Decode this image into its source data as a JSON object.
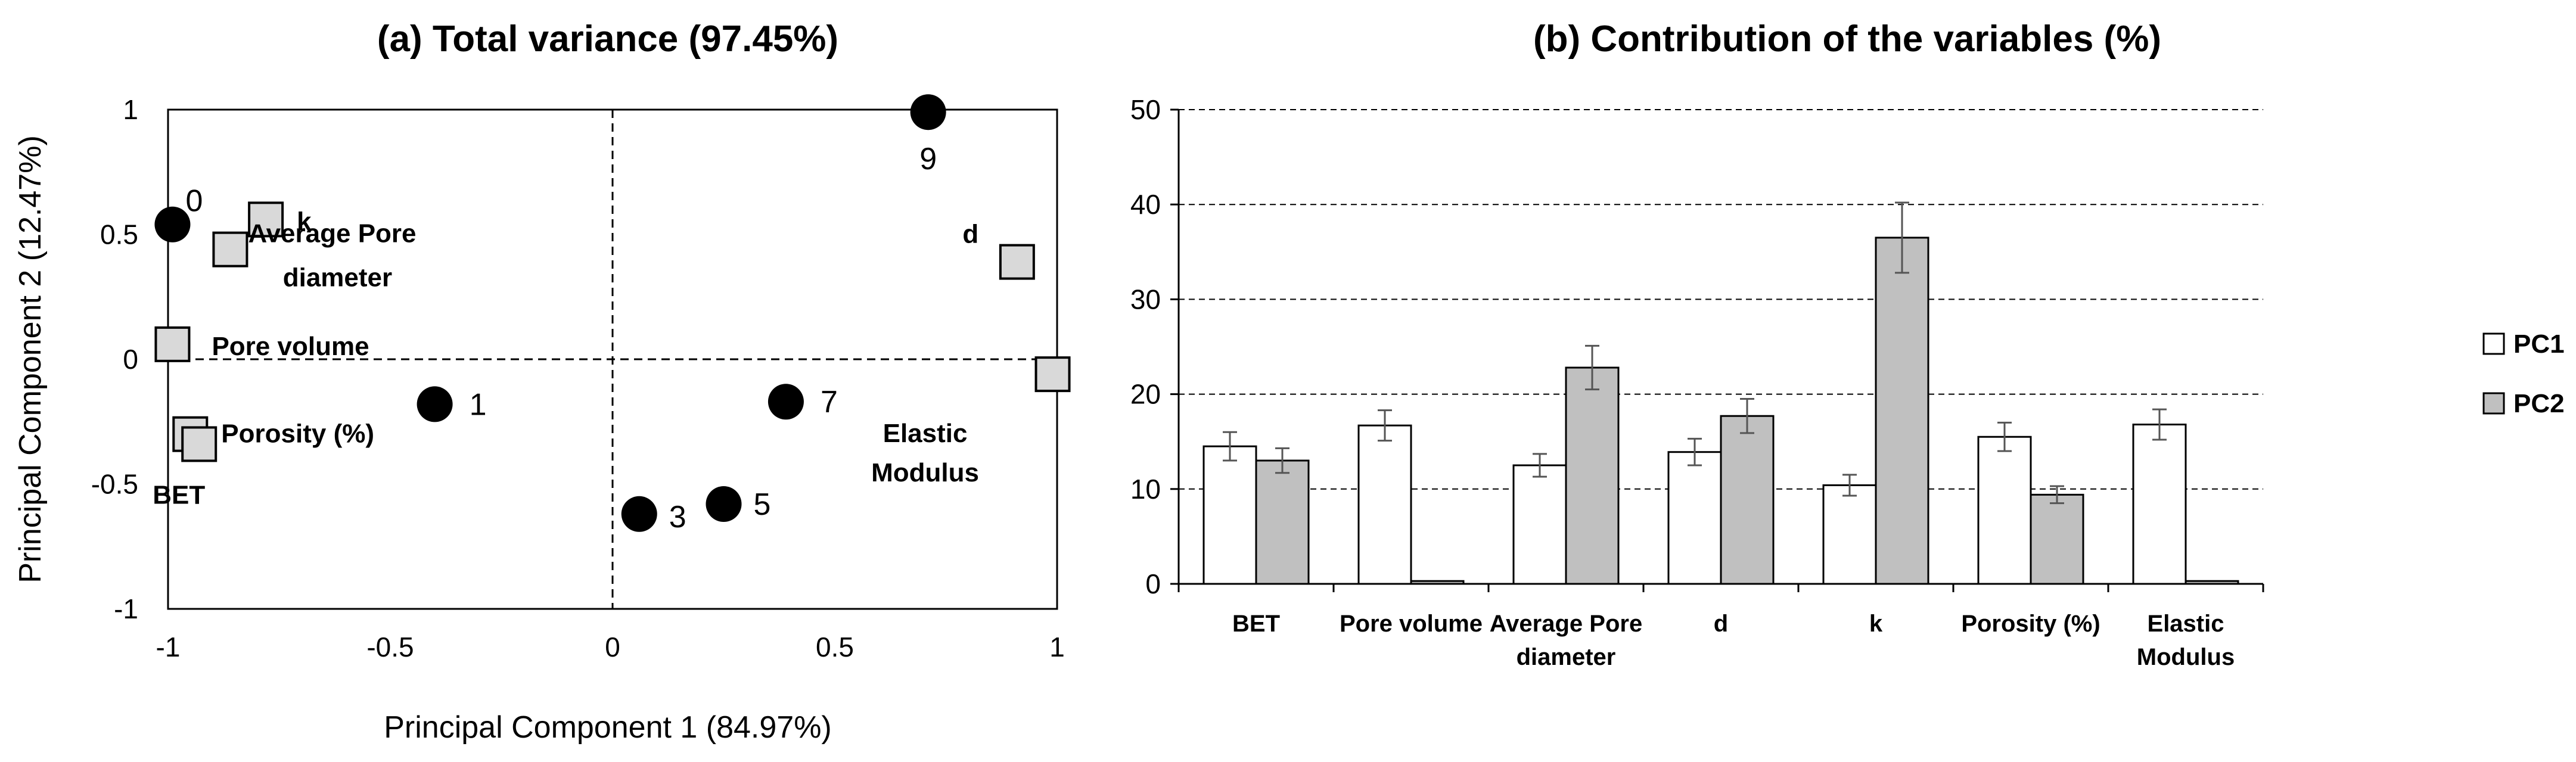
{
  "chart_data": [
    {
      "type": "scatter",
      "title": "(a) Total variance (97.45%)",
      "xlabel": "Principal Component 1 (84.97%)",
      "ylabel": "Principal Component 2 (12.47%)",
      "xlim": [
        -1,
        1
      ],
      "ylim": [
        -1,
        1
      ],
      "xticks": [
        "-1",
        "-0.5",
        "0",
        "0.5",
        "1"
      ],
      "yticks": [
        "-1",
        "-0.5",
        "0",
        "0.5",
        "1"
      ],
      "samples": [
        {
          "label": "0",
          "x": -0.99,
          "y": 0.54
        },
        {
          "label": "1",
          "x": -0.4,
          "y": -0.18
        },
        {
          "label": "3",
          "x": 0.06,
          "y": -0.62
        },
        {
          "label": "5",
          "x": 0.25,
          "y": -0.58
        },
        {
          "label": "7",
          "x": 0.39,
          "y": -0.17
        },
        {
          "label": "9",
          "x": 0.71,
          "y": 0.99
        }
      ],
      "variables": [
        {
          "label": "k",
          "x": -0.78,
          "y": 0.56
        },
        {
          "label": "Average Pore diameter",
          "x": -0.86,
          "y": 0.44
        },
        {
          "label": "d",
          "x": 0.91,
          "y": 0.39
        },
        {
          "label": "Pore volume",
          "x": -0.99,
          "y": 0.06
        },
        {
          "label": "Elastic Modulus",
          "x": 0.99,
          "y": -0.06
        },
        {
          "label": "Porosity (%)",
          "x": -0.95,
          "y": -0.3
        },
        {
          "label": "BET",
          "x": -0.93,
          "y": -0.34
        }
      ]
    },
    {
      "type": "bar",
      "title": "(b) Contribution of the variables (%)",
      "categories": [
        "BET",
        "Pore volume",
        "Average Pore diameter",
        "d",
        "k",
        "Porosity (%)",
        "Elastic Modulus"
      ],
      "series": [
        {
          "name": "PC1",
          "color": "#ffffff",
          "values": [
            14.5,
            16.7,
            12.5,
            13.9,
            10.4,
            15.5,
            16.8
          ],
          "errors": [
            1.5,
            1.6,
            1.2,
            1.4,
            1.1,
            1.5,
            1.6
          ]
        },
        {
          "name": "PC2",
          "color": "#c0c0c0",
          "values": [
            13.0,
            0.3,
            22.8,
            17.7,
            36.5,
            9.4,
            0.3
          ],
          "errors": [
            1.3,
            0,
            2.3,
            1.8,
            3.7,
            0.9,
            0
          ]
        }
      ],
      "ylim": [
        0,
        50
      ],
      "yticks": [
        "0",
        "10",
        "20",
        "30",
        "40",
        "50"
      ],
      "grid": "horizontal dashed",
      "legend": "right"
    }
  ]
}
